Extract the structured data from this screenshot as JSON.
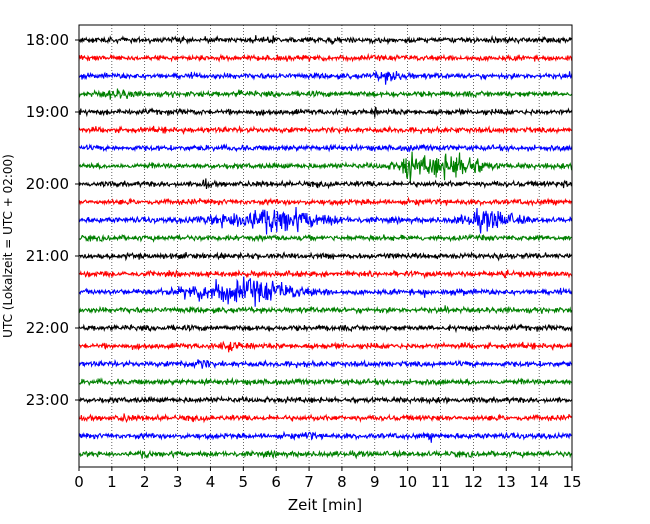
{
  "chart_data": {
    "type": "line",
    "title": "",
    "xlabel": "Zeit  [min]",
    "ylabel": "UTC (Lokalzeit = UTC + 02:00)",
    "xlim": [
      0,
      15
    ],
    "x_ticks": [
      0,
      1,
      2,
      3,
      4,
      5,
      6,
      7,
      8,
      9,
      10,
      11,
      12,
      13,
      14,
      15
    ],
    "x_tick_labels": [
      "0",
      "1",
      "2",
      "3",
      "4",
      "5",
      "6",
      "7",
      "8",
      "9",
      "10",
      "11",
      "12",
      "13",
      "14",
      "15"
    ],
    "y_tick_labels": [
      "18:00",
      "19:00",
      "20:00",
      "21:00",
      "22:00",
      "23:00"
    ],
    "y_tick_rows": [
      0,
      4,
      8,
      12,
      16,
      20
    ],
    "grid": "vertical dotted",
    "row_minutes": 15,
    "trace_colors": [
      "#000000",
      "#ff0000",
      "#0000ff",
      "#008000"
    ],
    "traces": [
      {
        "start": "18:00",
        "events": [
          {
            "t": 5.9,
            "amp": 0.6,
            "dur": 0.1
          },
          {
            "t": 7.7,
            "amp": 0.5,
            "dur": 0.1
          }
        ]
      },
      {
        "start": "18:15",
        "events": []
      },
      {
        "start": "18:30",
        "events": [
          {
            "t": 9.5,
            "amp": 0.7,
            "dur": 0.7
          }
        ]
      },
      {
        "start": "18:45",
        "events": [
          {
            "t": 1.2,
            "amp": 0.45,
            "dur": 0.8
          },
          {
            "t": 4.9,
            "amp": 0.5,
            "dur": 0.1
          }
        ]
      },
      {
        "start": "19:00",
        "events": [
          {
            "t": 9.0,
            "amp": 0.5,
            "dur": 0.1
          }
        ]
      },
      {
        "start": "19:15",
        "events": []
      },
      {
        "start": "19:30",
        "events": [
          {
            "t": 10.0,
            "amp": 0.5,
            "dur": 0.1
          }
        ]
      },
      {
        "start": "19:45",
        "events": [
          {
            "t": 10.0,
            "amp": 2.0,
            "dur": 0.2
          },
          {
            "t": 10.8,
            "amp": 1.2,
            "dur": 1.6
          },
          {
            "t": 11.7,
            "amp": 1.3,
            "dur": 1.0
          }
        ]
      },
      {
        "start": "20:00",
        "events": [
          {
            "t": 3.8,
            "amp": 0.5,
            "dur": 0.2
          },
          {
            "t": 14.8,
            "amp": 0.5,
            "dur": 0.1
          }
        ]
      },
      {
        "start": "20:15",
        "events": []
      },
      {
        "start": "20:30",
        "events": [
          {
            "t": 5.8,
            "amp": 1.8,
            "dur": 2.4
          },
          {
            "t": 12.5,
            "amp": 1.3,
            "dur": 1.3
          }
        ]
      },
      {
        "start": "20:45",
        "events": []
      },
      {
        "start": "21:00",
        "events": [
          {
            "t": 12.8,
            "amp": 0.6,
            "dur": 0.1
          }
        ]
      },
      {
        "start": "21:15",
        "events": [
          {
            "t": 13.0,
            "amp": 0.5,
            "dur": 0.1
          }
        ]
      },
      {
        "start": "21:30",
        "events": [
          {
            "t": 5.0,
            "amp": 1.7,
            "dur": 2.6
          },
          {
            "t": 10.5,
            "amp": 0.5,
            "dur": 0.1
          },
          {
            "t": 11.7,
            "amp": 0.45,
            "dur": 0.1
          }
        ]
      },
      {
        "start": "21:45",
        "events": []
      },
      {
        "start": "22:00",
        "events": [
          {
            "t": 5.5,
            "amp": 0.45,
            "dur": 0.1
          }
        ]
      },
      {
        "start": "22:15",
        "events": [
          {
            "t": 4.6,
            "amp": 0.5,
            "dur": 0.6
          }
        ]
      },
      {
        "start": "22:30",
        "events": [
          {
            "t": 3.6,
            "amp": 0.5,
            "dur": 0.6
          }
        ]
      },
      {
        "start": "22:45",
        "events": []
      },
      {
        "start": "23:00",
        "events": []
      },
      {
        "start": "23:15",
        "events": [
          {
            "t": 1.4,
            "amp": 0.4,
            "dur": 0.2
          }
        ]
      },
      {
        "start": "23:30",
        "events": [
          {
            "t": 7.0,
            "amp": 0.5,
            "dur": 0.2
          },
          {
            "t": 10.7,
            "amp": 0.45,
            "dur": 0.1
          }
        ]
      },
      {
        "start": "23:45",
        "events": [
          {
            "t": 2.0,
            "amp": 0.45,
            "dur": 0.2
          }
        ]
      }
    ]
  }
}
